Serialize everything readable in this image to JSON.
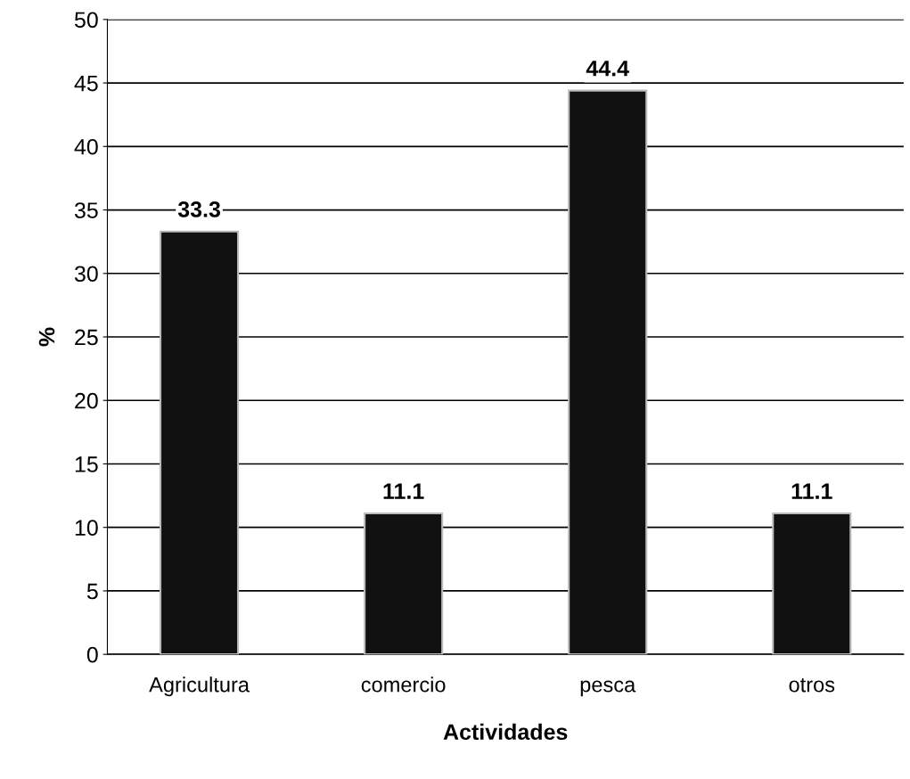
{
  "chart_data": {
    "type": "bar",
    "categories": [
      "Agricultura",
      "comercio",
      "pesca",
      "otros"
    ],
    "values": [
      33.3,
      11.1,
      44.4,
      11.1
    ],
    "color": "#111111",
    "xlabel": "Actividades",
    "ylabel": "%",
    "ylim": [
      0,
      50
    ],
    "yticks": [
      0,
      5,
      10,
      15,
      20,
      25,
      30,
      35,
      40,
      45,
      50
    ],
    "grid": "y",
    "data_labels": true
  }
}
